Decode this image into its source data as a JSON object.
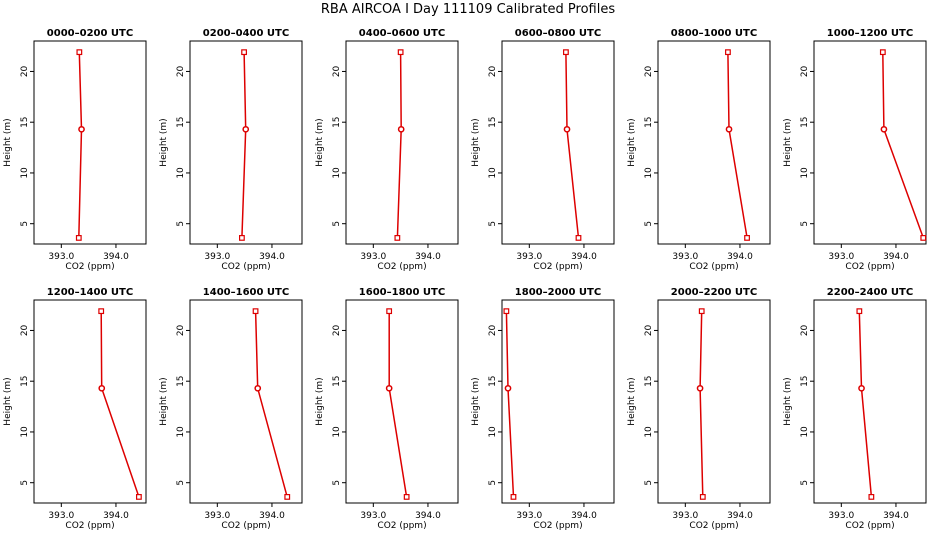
{
  "figure_title": "RBA AIRCOA I  Day 111109  Calibrated Profiles",
  "chart_data": {
    "type": "line",
    "xlabel": "CO2 (ppm)",
    "ylabel": "Height (m)",
    "xlim": [
      392.5,
      394.55
    ],
    "ylim": [
      3.0,
      23.0
    ],
    "x_ticks": [
      393.0,
      394.0
    ],
    "x_tick_labels": [
      "393.0",
      "394.0"
    ],
    "y_ticks": [
      5,
      10,
      15,
      20
    ],
    "y_tick_labels": [
      "5",
      "10",
      "15",
      "20"
    ],
    "heights": [
      3.6,
      14.3,
      21.9
    ],
    "panels": [
      {
        "title": "0000–0200 UTC",
        "co2": [
          393.32,
          393.37,
          393.33
        ]
      },
      {
        "title": "0200–0400 UTC",
        "co2": [
          393.45,
          393.52,
          393.49
        ]
      },
      {
        "title": "0400–0600 UTC",
        "co2": [
          393.44,
          393.51,
          393.5
        ]
      },
      {
        "title": "0600–0800 UTC",
        "co2": [
          393.9,
          393.69,
          393.67
        ]
      },
      {
        "title": "0800–1000 UTC",
        "co2": [
          394.13,
          393.8,
          393.78
        ]
      },
      {
        "title": "1000–1200 UTC",
        "co2": [
          394.5,
          393.78,
          393.76
        ]
      },
      {
        "title": "1200–1400 UTC",
        "co2": [
          394.42,
          393.74,
          393.73
        ]
      },
      {
        "title": "1400–1600 UTC",
        "co2": [
          394.28,
          393.74,
          393.7
        ]
      },
      {
        "title": "1600–1800 UTC",
        "co2": [
          393.61,
          393.29,
          393.29
        ]
      },
      {
        "title": "1800–2000 UTC",
        "co2": [
          392.71,
          392.61,
          392.58
        ]
      },
      {
        "title": "2000–2200 UTC",
        "co2": [
          393.32,
          393.27,
          393.3
        ]
      },
      {
        "title": "2200–2400 UTC",
        "co2": [
          393.55,
          393.37,
          393.33
        ]
      }
    ]
  }
}
